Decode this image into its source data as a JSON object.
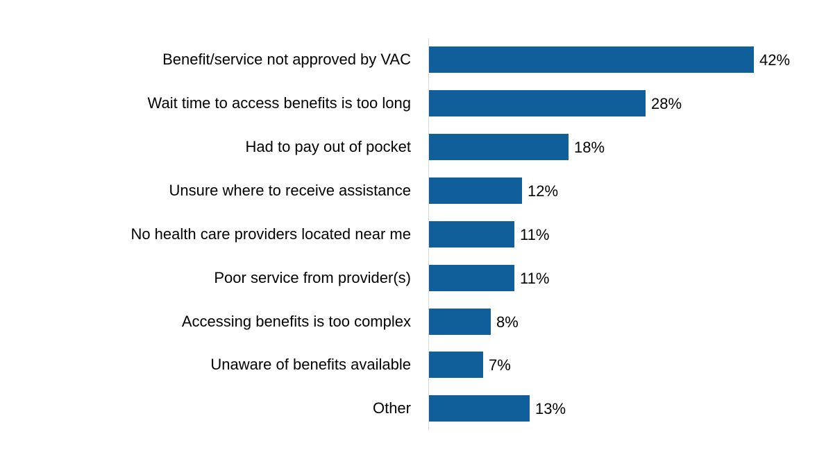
{
  "chart_data": {
    "type": "bar",
    "orientation": "horizontal",
    "title": "",
    "xlabel": "",
    "ylabel": "",
    "categories": [
      "Benefit/service not approved by VAC",
      "Wait time to access benefits is too long",
      "Had to pay out of pocket",
      "Unsure where to receive assistance",
      "No health care providers located near me",
      "Poor service from provider(s)",
      "Accessing benefits is too complex",
      "Unaware of benefits available",
      "Other"
    ],
    "values": [
      42,
      28,
      18,
      12,
      11,
      11,
      8,
      7,
      13
    ],
    "value_labels": [
      "42%",
      "28%",
      "18%",
      "12%",
      "11%",
      "11%",
      "8%",
      "7%",
      "13%"
    ],
    "unit": "%",
    "xlim": [
      0,
      45
    ],
    "grid": false,
    "legend": null,
    "bar_color": "#115f9a"
  },
  "chart": {
    "rows": [
      {
        "label": "Benefit/service not approved by VAC",
        "value": 42,
        "display": "42%"
      },
      {
        "label": "Wait time to access benefits is too long",
        "value": 28,
        "display": "28%"
      },
      {
        "label": "Had to pay out of pocket",
        "value": 18,
        "display": "18%"
      },
      {
        "label": "Unsure where to receive assistance",
        "value": 12,
        "display": "12%"
      },
      {
        "label": "No health care providers located near me",
        "value": 11,
        "display": "11%"
      },
      {
        "label": "Poor service from provider(s)",
        "value": 11,
        "display": "11%"
      },
      {
        "label": "Accessing benefits is too complex",
        "value": 8,
        "display": "8%"
      },
      {
        "label": "Unaware of benefits available",
        "value": 7,
        "display": "7%"
      },
      {
        "label": "Other",
        "value": 13,
        "display": "13%"
      }
    ]
  },
  "colors": {
    "bar": "#115f9a",
    "axis": "#d9d9d9",
    "text": "#000000",
    "background": "#ffffff"
  }
}
